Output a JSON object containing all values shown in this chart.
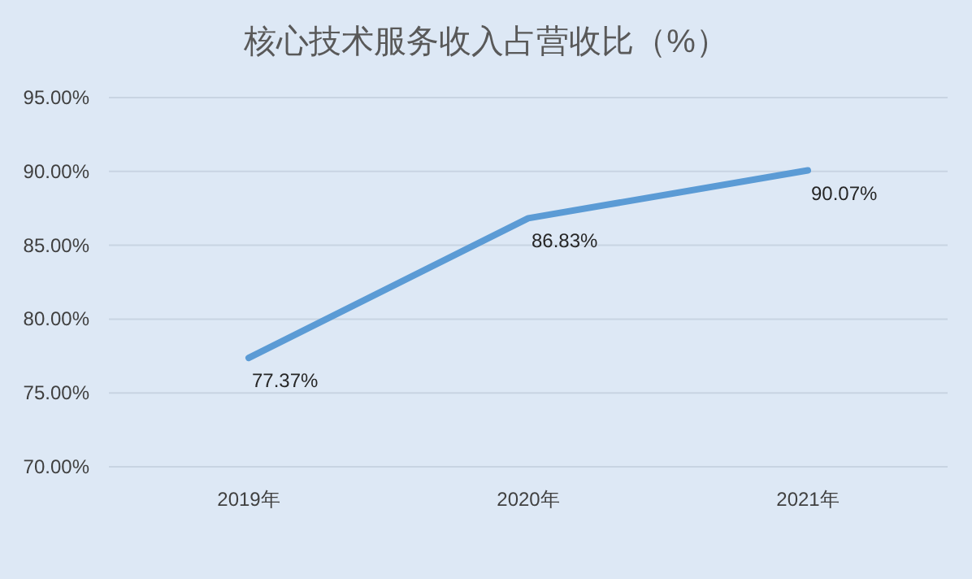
{
  "chart_data": {
    "type": "line",
    "title": "核心技术服务收入占营收比（%）",
    "categories": [
      "2019年",
      "2020年",
      "2021年"
    ],
    "values": [
      77.37,
      86.83,
      90.07
    ],
    "value_labels": [
      "77.37%",
      "86.83%",
      "90.07%"
    ],
    "color": "#5b9bd5",
    "ylim": [
      70,
      95
    ],
    "yticks": [
      {
        "value": 70,
        "label": "70.00%"
      },
      {
        "value": 75,
        "label": "75.00%"
      },
      {
        "value": 80,
        "label": "80.00%"
      },
      {
        "value": 85,
        "label": "85.00%"
      },
      {
        "value": 90,
        "label": "90.00%"
      },
      {
        "value": 95,
        "label": "95.00%"
      }
    ],
    "grid": "y"
  }
}
